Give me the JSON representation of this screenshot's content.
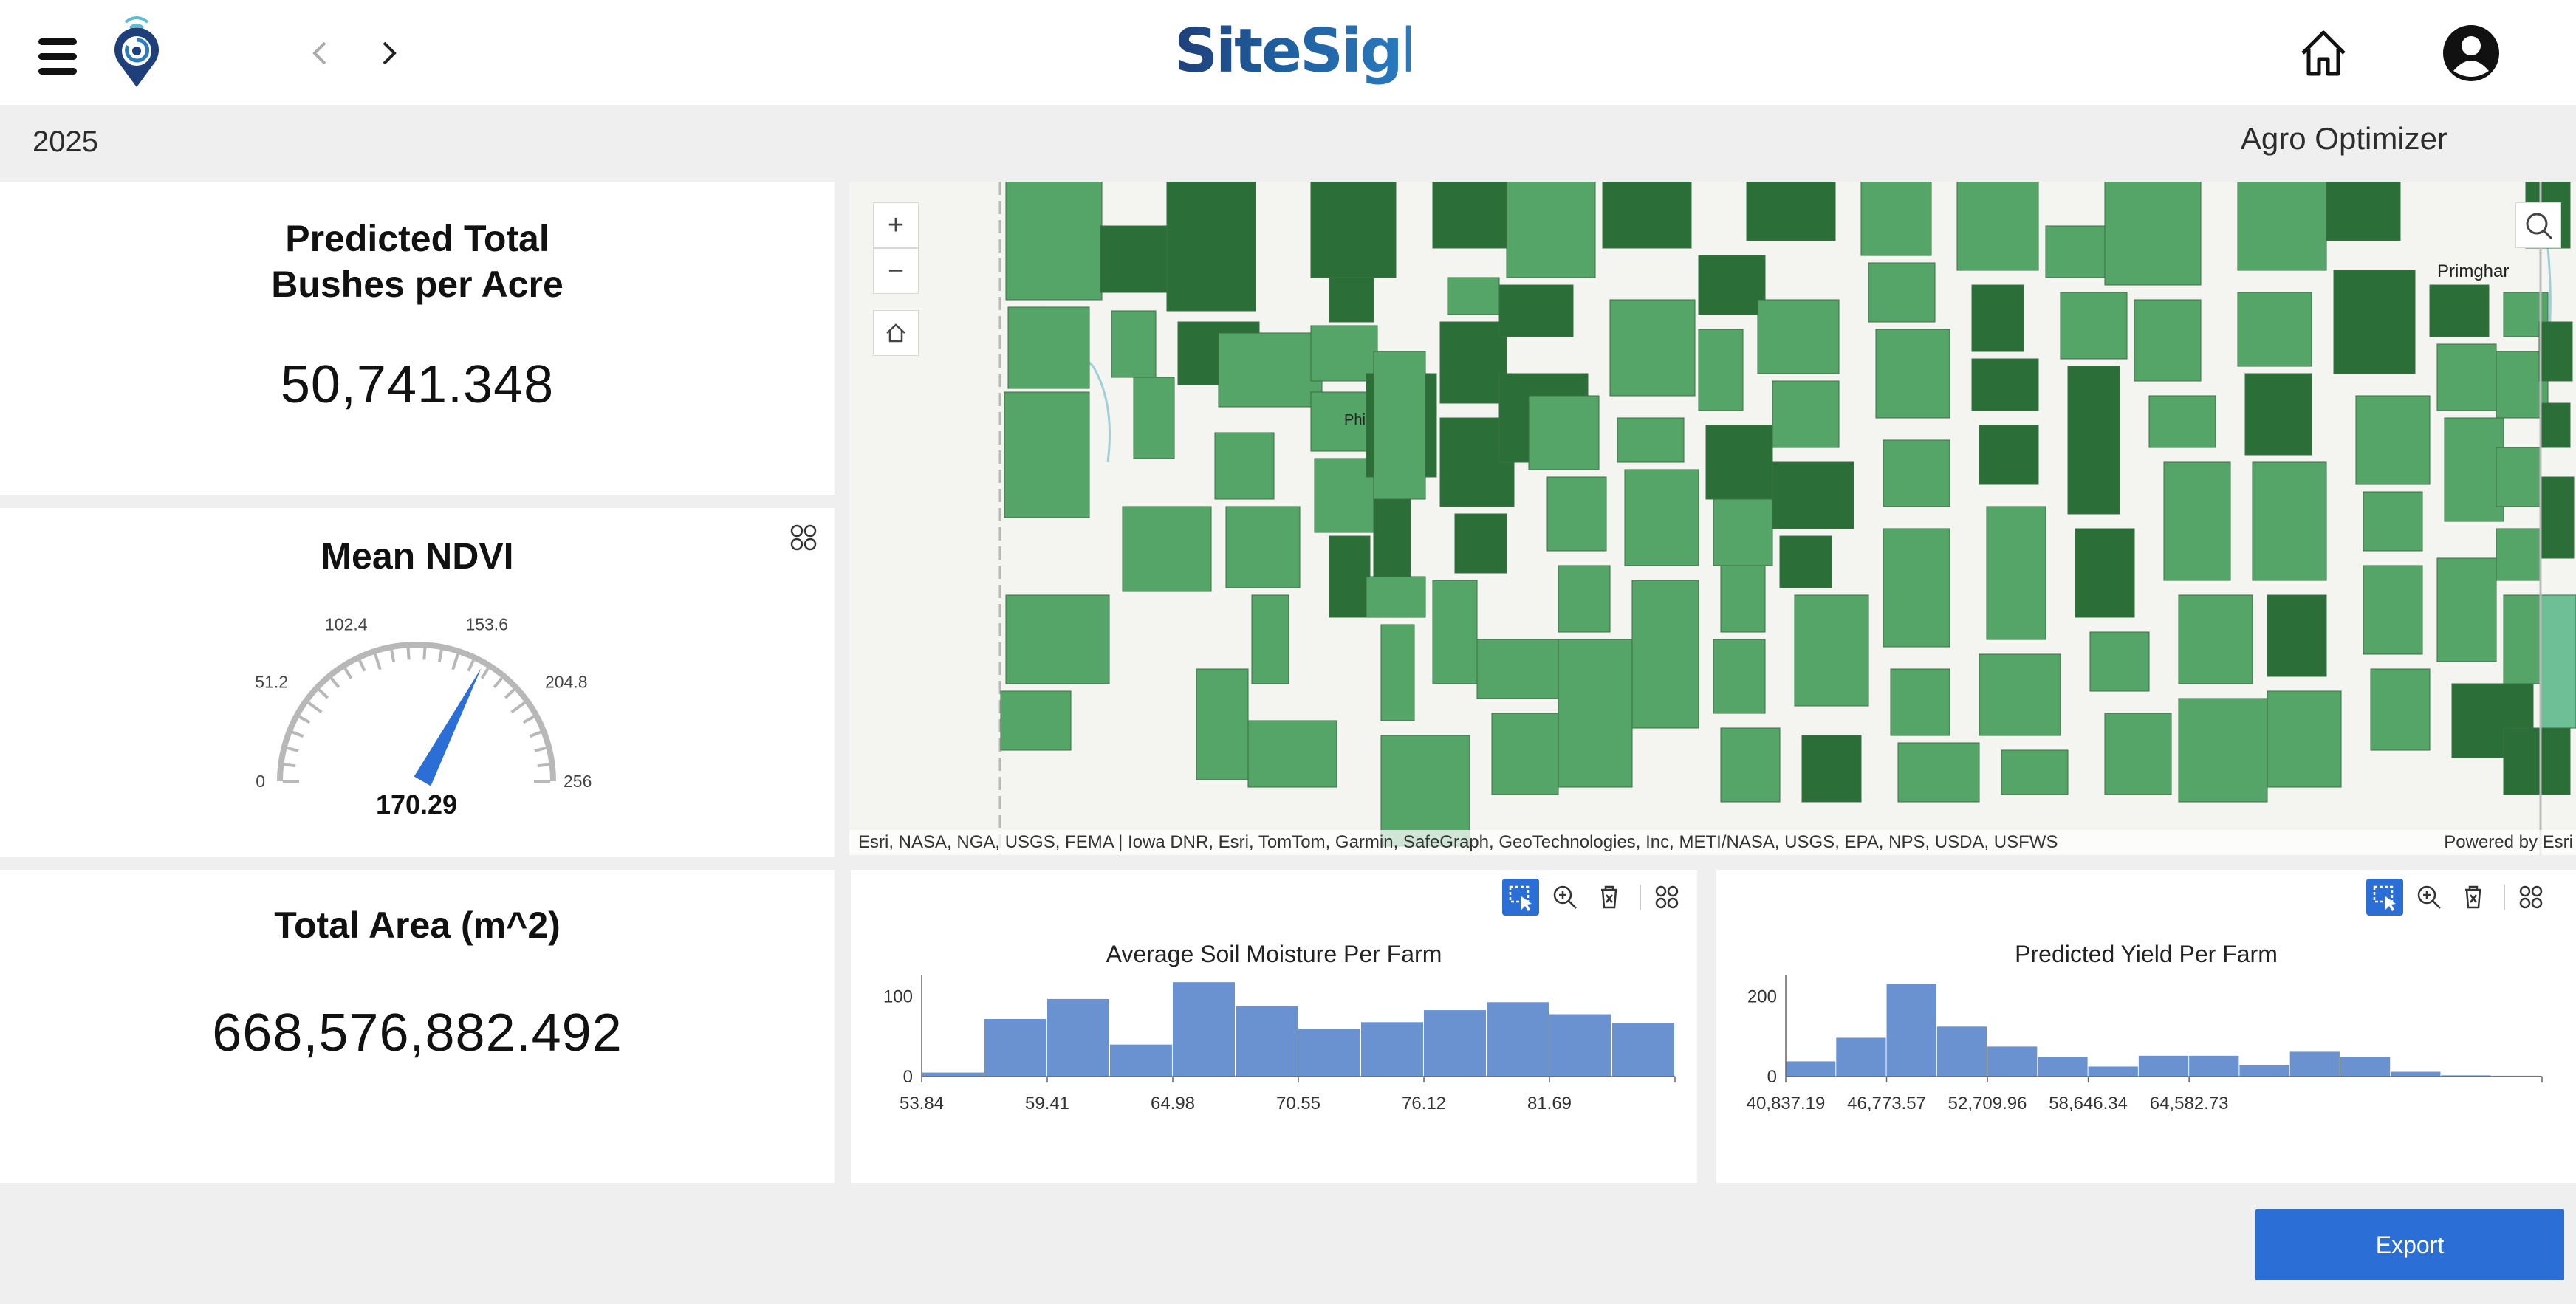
{
  "header": {
    "brand": "SiteSight",
    "icons": {
      "menu": "hamburger-icon",
      "logo": "location-pin-logo-icon",
      "prev": "chevron-left-icon",
      "next": "chevron-right-icon",
      "home": "home-icon",
      "user": "user-account-icon"
    }
  },
  "subheader": {
    "year": "2025",
    "app_name": "Agro Optimizer"
  },
  "kpis": {
    "bushels": {
      "title_line1": "Predicted Total",
      "title_line2": "Bushes per Acre",
      "value": "50,741.348"
    },
    "area": {
      "title": "Total Area (m^2)",
      "value": "668,576,882.492"
    }
  },
  "ndvi": {
    "title": "Mean NDVI",
    "value": 170.29,
    "value_label": "170.29",
    "min": 0,
    "max": 256,
    "tick_labels": [
      "0",
      "51.2",
      "102.4",
      "153.6",
      "204.8",
      "256"
    ],
    "colors": {
      "needle": "#2b6fd6",
      "arc": "#b8b8b8"
    }
  },
  "map": {
    "zoom_in": "+",
    "zoom_out": "−",
    "places": [
      "Primghar",
      "Phi"
    ],
    "attribution": "Esri, NASA, NGA, USGS, FEMA | Iowa DNR, Esri, TomTom, Garmin, SafeGraph, GeoTechnologies, Inc, METI/NASA, USGS, EPA, NPS, USDA, USFWS",
    "powered_by": "Powered by Esri",
    "colors": {
      "field_light": "#55a468",
      "field_dark": "#2c6e37",
      "background": "#f4f4f1"
    }
  },
  "chart_data": [
    {
      "type": "bar",
      "title": "Average Soil Moisture Per Farm",
      "x_tick_labels": [
        "53.84",
        "59.41",
        "64.98",
        "70.55",
        "76.12",
        "81.69"
      ],
      "x_ticks": [
        53.84,
        59.41,
        64.98,
        70.55,
        76.12,
        81.69
      ],
      "bin_width": 2.785,
      "y_tick_labels": [
        "0",
        "100"
      ],
      "ylim": [
        0,
        120
      ],
      "values": [
        5,
        72,
        97,
        40,
        118,
        88,
        60,
        68,
        83,
        93,
        78,
        67
      ],
      "color": "#6a92d1"
    },
    {
      "type": "bar",
      "title": "Predicted Yield Per Farm",
      "x_tick_labels": [
        "40,837.19",
        "46,773.57",
        "52,709.96",
        "58,646.34",
        "64,582.73"
      ],
      "x_ticks": [
        40837.19,
        46773.57,
        52709.96,
        58646.34,
        64582.73
      ],
      "bin_width": 2968.2,
      "y_tick_labels": [
        "0",
        "200"
      ],
      "ylim": [
        0,
        240
      ],
      "values": [
        38,
        97,
        232,
        125,
        75,
        48,
        25,
        52,
        52,
        28,
        62,
        48,
        12,
        3,
        2
      ],
      "color": "#6a92d1"
    }
  ],
  "toolbar": {
    "select_icon": "select-rectangle-icon",
    "zoom_icon": "zoom-in-icon",
    "clear_icon": "clear-selection-icon",
    "menu_icon": "options-grid-icon"
  },
  "export_label": "Export"
}
